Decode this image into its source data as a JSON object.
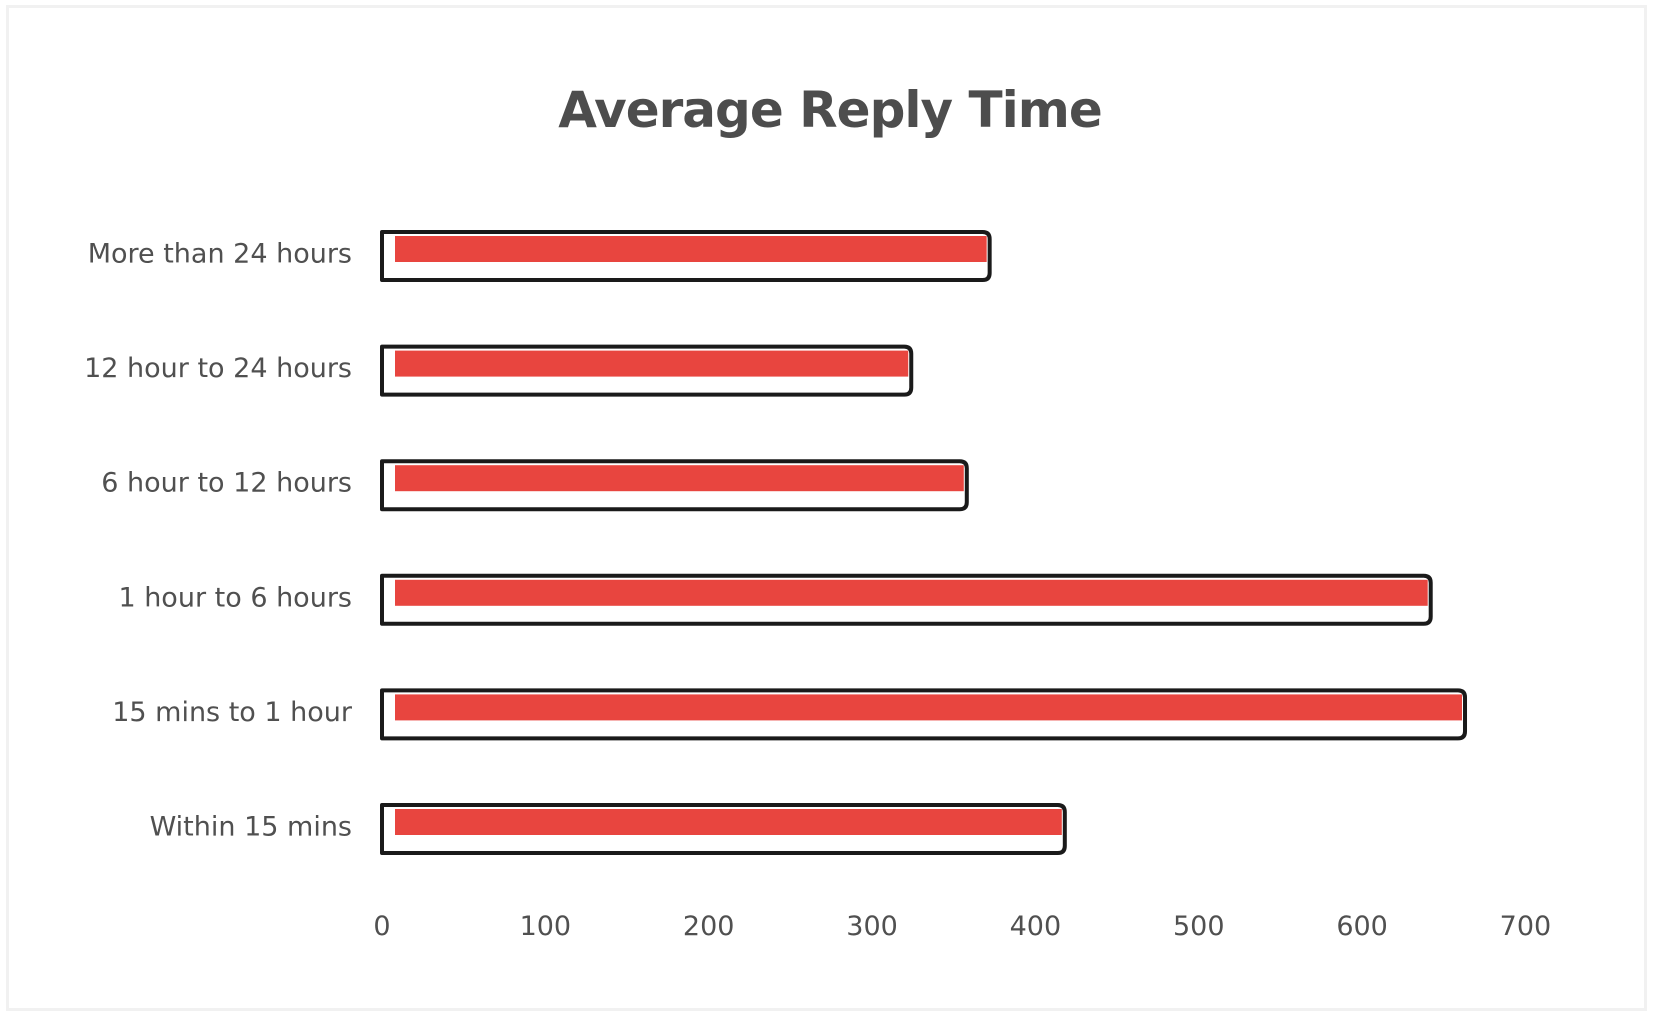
{
  "chart_data": {
    "type": "bar",
    "orientation": "horizontal",
    "title": "Average Reply Time",
    "xlabel": "",
    "ylabel": "",
    "categories": [
      "More than 24 hours",
      "12 hour to 24 hours",
      "6 hour to 12 hours",
      "1 hour to 6 hours",
      "15 mins to 1 hour",
      "Within 15 mins"
    ],
    "values": [
      372,
      324,
      358,
      642,
      663,
      418
    ],
    "xlim": [
      0,
      700
    ],
    "xticks": [
      "0",
      "100",
      "200",
      "300",
      "400",
      "500",
      "600",
      "700"
    ],
    "grid": false,
    "legend": "none",
    "colors": {
      "bar_fill": "#e8453f",
      "bar_outline": "#1a1a1a",
      "text": "#505050",
      "title": "#4d4d4d",
      "background": "#ffffff"
    }
  }
}
